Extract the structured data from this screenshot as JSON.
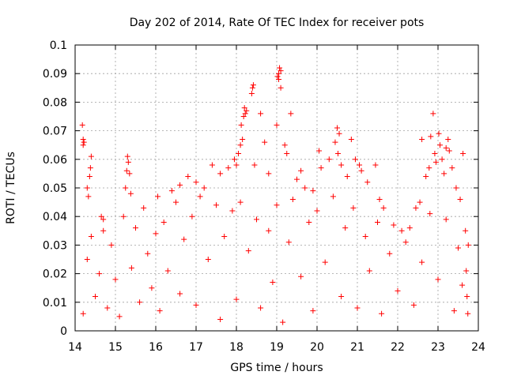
{
  "chart_data": {
    "type": "scatter",
    "title": "Day 202 of 2014, Rate Of TEC Index for receiver pots",
    "xlabel": "GPS time / hours",
    "ylabel": "ROTI / TECUs",
    "xlim": [
      14,
      24
    ],
    "ylim": [
      0,
      0.1
    ],
    "xticks": [
      14,
      15,
      16,
      17,
      18,
      19,
      20,
      21,
      22,
      23,
      24
    ],
    "yticks": [
      0,
      0.01,
      0.02,
      0.03,
      0.04,
      0.05,
      0.06,
      0.07,
      0.08,
      0.09,
      0.1
    ],
    "grid": true,
    "marker": "plus",
    "series_color": "#ff0000",
    "series": [
      {
        "name": "ROTI",
        "points": [
          [
            14.18,
            0.072
          ],
          [
            14.2,
            0.067
          ],
          [
            14.22,
            0.066
          ],
          [
            14.2,
            0.065
          ],
          [
            14.4,
            0.061
          ],
          [
            14.38,
            0.057
          ],
          [
            14.36,
            0.054
          ],
          [
            14.3,
            0.05
          ],
          [
            14.33,
            0.047
          ],
          [
            14.65,
            0.04
          ],
          [
            14.7,
            0.039
          ],
          [
            15.3,
            0.061
          ],
          [
            15.32,
            0.059
          ],
          [
            15.28,
            0.056
          ],
          [
            15.35,
            0.055
          ],
          [
            15.25,
            0.05
          ],
          [
            15.38,
            0.048
          ],
          [
            16.05,
            0.047
          ],
          [
            16.4,
            0.049
          ],
          [
            16.6,
            0.051
          ],
          [
            16.8,
            0.054
          ],
          [
            17.0,
            0.052
          ],
          [
            17.2,
            0.05
          ],
          [
            17.4,
            0.058
          ],
          [
            17.6,
            0.055
          ],
          [
            17.8,
            0.057
          ],
          [
            17.95,
            0.06
          ],
          [
            18.0,
            0.058
          ],
          [
            18.05,
            0.062
          ],
          [
            18.1,
            0.065
          ],
          [
            18.15,
            0.067
          ],
          [
            18.12,
            0.072
          ],
          [
            18.18,
            0.075
          ],
          [
            18.2,
            0.078
          ],
          [
            18.25,
            0.077
          ],
          [
            18.22,
            0.076
          ],
          [
            18.4,
            0.085
          ],
          [
            18.42,
            0.086
          ],
          [
            18.38,
            0.083
          ],
          [
            18.45,
            0.058
          ],
          [
            18.6,
            0.076
          ],
          [
            18.7,
            0.066
          ],
          [
            18.8,
            0.055
          ],
          [
            19.0,
            0.072
          ],
          [
            19.02,
            0.089
          ],
          [
            19.05,
            0.09
          ],
          [
            19.07,
            0.092
          ],
          [
            19.1,
            0.091
          ],
          [
            19.05,
            0.088
          ],
          [
            19.1,
            0.085
          ],
          [
            19.2,
            0.065
          ],
          [
            19.25,
            0.062
          ],
          [
            19.35,
            0.076
          ],
          [
            19.5,
            0.053
          ],
          [
            19.6,
            0.056
          ],
          [
            19.7,
            0.05
          ],
          [
            19.9,
            0.049
          ],
          [
            20.05,
            0.063
          ],
          [
            20.1,
            0.057
          ],
          [
            20.3,
            0.06
          ],
          [
            20.45,
            0.066
          ],
          [
            20.5,
            0.071
          ],
          [
            20.55,
            0.069
          ],
          [
            20.52,
            0.062
          ],
          [
            20.6,
            0.058
          ],
          [
            20.75,
            0.054
          ],
          [
            20.85,
            0.067
          ],
          [
            20.95,
            0.06
          ],
          [
            21.05,
            0.058
          ],
          [
            21.1,
            0.056
          ],
          [
            21.25,
            0.052
          ],
          [
            21.45,
            0.058
          ],
          [
            21.55,
            0.046
          ],
          [
            21.65,
            0.043
          ],
          [
            21.9,
            0.037
          ],
          [
            22.1,
            0.035
          ],
          [
            22.3,
            0.036
          ],
          [
            22.45,
            0.043
          ],
          [
            22.55,
            0.045
          ],
          [
            22.6,
            0.067
          ],
          [
            22.7,
            0.054
          ],
          [
            22.78,
            0.057
          ],
          [
            22.82,
            0.068
          ],
          [
            22.88,
            0.076
          ],
          [
            22.92,
            0.062
          ],
          [
            22.95,
            0.059
          ],
          [
            23.02,
            0.069
          ],
          [
            23.05,
            0.065
          ],
          [
            23.1,
            0.06
          ],
          [
            23.15,
            0.055
          ],
          [
            23.2,
            0.064
          ],
          [
            23.25,
            0.067
          ],
          [
            23.28,
            0.063
          ],
          [
            23.35,
            0.057
          ],
          [
            23.45,
            0.05
          ],
          [
            23.55,
            0.046
          ],
          [
            23.62,
            0.062
          ],
          [
            23.68,
            0.035
          ],
          [
            23.72,
            0.012
          ],
          [
            23.74,
            0.006
          ],
          [
            23.75,
            0.03
          ],
          [
            14.2,
            0.006
          ],
          [
            14.3,
            0.025
          ],
          [
            14.4,
            0.033
          ],
          [
            14.5,
            0.012
          ],
          [
            14.6,
            0.02
          ],
          [
            14.7,
            0.035
          ],
          [
            14.8,
            0.008
          ],
          [
            14.9,
            0.03
          ],
          [
            15.0,
            0.018
          ],
          [
            15.1,
            0.005
          ],
          [
            15.2,
            0.04
          ],
          [
            15.4,
            0.022
          ],
          [
            15.5,
            0.036
          ],
          [
            15.6,
            0.01
          ],
          [
            15.7,
            0.043
          ],
          [
            15.8,
            0.027
          ],
          [
            15.9,
            0.015
          ],
          [
            16.0,
            0.034
          ],
          [
            16.1,
            0.007
          ],
          [
            16.2,
            0.038
          ],
          [
            16.3,
            0.021
          ],
          [
            16.5,
            0.045
          ],
          [
            16.6,
            0.013
          ],
          [
            16.7,
            0.032
          ],
          [
            16.9,
            0.04
          ],
          [
            17.0,
            0.009
          ],
          [
            17.1,
            0.047
          ],
          [
            17.3,
            0.025
          ],
          [
            17.5,
            0.044
          ],
          [
            17.6,
            0.004
          ],
          [
            17.7,
            0.033
          ],
          [
            17.9,
            0.042
          ],
          [
            18.0,
            0.011
          ],
          [
            18.1,
            0.045
          ],
          [
            18.3,
            0.028
          ],
          [
            18.5,
            0.039
          ],
          [
            18.6,
            0.008
          ],
          [
            18.8,
            0.035
          ],
          [
            18.9,
            0.017
          ],
          [
            19.0,
            0.044
          ],
          [
            19.15,
            0.003
          ],
          [
            19.3,
            0.031
          ],
          [
            19.4,
            0.046
          ],
          [
            19.6,
            0.019
          ],
          [
            19.8,
            0.038
          ],
          [
            19.9,
            0.007
          ],
          [
            20.0,
            0.042
          ],
          [
            20.2,
            0.024
          ],
          [
            20.4,
            0.047
          ],
          [
            20.6,
            0.012
          ],
          [
            20.7,
            0.036
          ],
          [
            20.9,
            0.043
          ],
          [
            21.0,
            0.008
          ],
          [
            21.2,
            0.033
          ],
          [
            21.3,
            0.021
          ],
          [
            21.5,
            0.038
          ],
          [
            21.6,
            0.006
          ],
          [
            21.8,
            0.027
          ],
          [
            22.0,
            0.014
          ],
          [
            22.2,
            0.031
          ],
          [
            22.4,
            0.009
          ],
          [
            22.6,
            0.024
          ],
          [
            22.8,
            0.041
          ],
          [
            23.0,
            0.018
          ],
          [
            23.2,
            0.039
          ],
          [
            23.4,
            0.007
          ],
          [
            23.5,
            0.029
          ],
          [
            23.6,
            0.016
          ],
          [
            23.7,
            0.021
          ]
        ]
      }
    ]
  }
}
